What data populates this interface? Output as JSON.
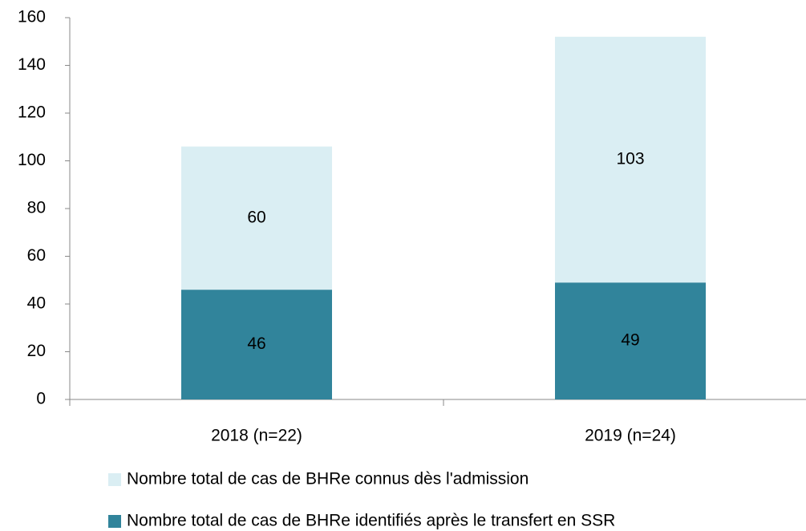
{
  "chart_data": {
    "type": "stacked_bar",
    "categories": [
      "2018 (n=22)",
      "2019 (n=24)"
    ],
    "series": [
      {
        "name": "Nombre total de cas de BHRe identifiés après le transfert en SSR",
        "color": "#31849b",
        "values": [
          46,
          49
        ]
      },
      {
        "name": "Nombre total de cas de BHRe connus dès l'admission",
        "color": "#daeef3",
        "values": [
          60,
          103
        ]
      }
    ],
    "ylim": [
      0,
      160
    ],
    "yticks": [
      0,
      20,
      40,
      60,
      80,
      100,
      120,
      140,
      160
    ],
    "grid": false,
    "legend": "bottom"
  }
}
